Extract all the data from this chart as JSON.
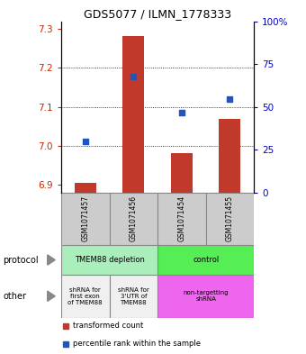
{
  "title": "GDS5077 / ILMN_1778333",
  "samples": [
    "GSM1071457",
    "GSM1071456",
    "GSM1071454",
    "GSM1071455"
  ],
  "bar_values": [
    6.905,
    7.282,
    6.982,
    7.068
  ],
  "bar_base": 6.88,
  "blue_values": [
    7.01,
    7.178,
    7.085,
    7.12
  ],
  "ylim": [
    6.88,
    7.32
  ],
  "yticks_left": [
    6.9,
    7.0,
    7.1,
    7.2,
    7.3
  ],
  "yticks_right": [
    0,
    25,
    50,
    75,
    100
  ],
  "bar_color": "#c0392b",
  "blue_color": "#2255bb",
  "protocol_row": [
    {
      "label": "TMEM88 depletion",
      "cols": [
        0,
        1
      ],
      "color": "#aaeebb"
    },
    {
      "label": "control",
      "cols": [
        2,
        3
      ],
      "color": "#55ee55"
    }
  ],
  "other_row": [
    {
      "label": "shRNA for\nfirst exon\nof TMEM88",
      "cols": [
        0
      ],
      "color": "#f0f0f0"
    },
    {
      "label": "shRNA for\n3'UTR of\nTMEM88",
      "cols": [
        1
      ],
      "color": "#f0f0f0"
    },
    {
      "label": "non-targetting\nshRNA",
      "cols": [
        2,
        3
      ],
      "color": "#ee66ee"
    }
  ],
  "legend_red_label": "transformed count",
  "legend_blue_label": "percentile rank within the sample",
  "protocol_label": "protocol",
  "other_label": "other",
  "sample_bg": "#cccccc"
}
